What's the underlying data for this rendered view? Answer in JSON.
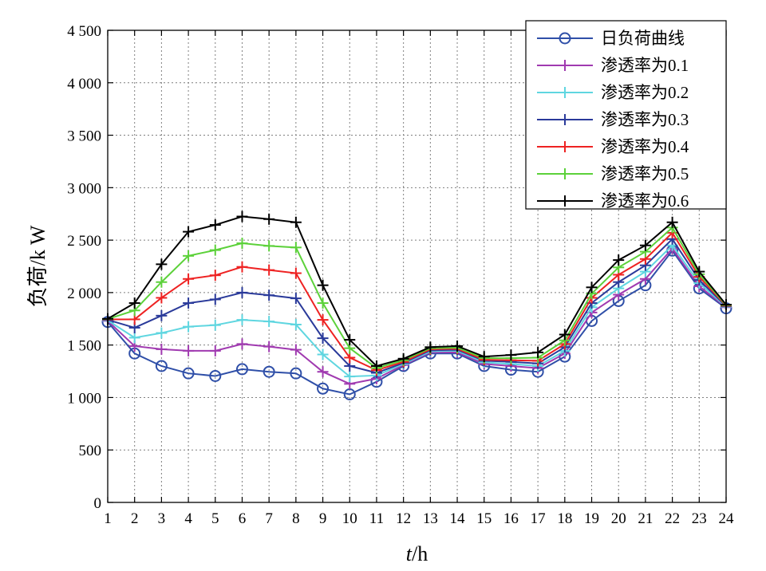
{
  "chart_data": {
    "type": "line",
    "title": "",
    "xlabel_italic": "t",
    "xlabel_rest": "/h",
    "ylabel": "负荷/k W",
    "xlim": [
      1,
      24
    ],
    "ylim": [
      0,
      4500
    ],
    "grid": true,
    "legend_position": "top-right",
    "x": [
      1,
      2,
      3,
      4,
      5,
      6,
      7,
      8,
      9,
      10,
      11,
      12,
      13,
      14,
      15,
      16,
      17,
      18,
      19,
      20,
      21,
      22,
      23,
      24
    ],
    "x_tick_labels": [
      "1",
      "2",
      "3",
      "4",
      "5",
      "6",
      "7",
      "8",
      "9",
      "10",
      "11",
      "12",
      "13",
      "14",
      "15",
      "16",
      "17",
      "18",
      "19",
      "20",
      "21",
      "22",
      "23",
      "24"
    ],
    "y_ticks": [
      0,
      500,
      1000,
      1500,
      2000,
      2500,
      3000,
      3500,
      4000,
      4500
    ],
    "y_tick_labels": [
      "0",
      "500",
      "1 000",
      "1 500",
      "2 000",
      "2 500",
      "3 000",
      "3 500",
      "4 000",
      "4 500"
    ],
    "series": [
      {
        "name": "日负荷曲线",
        "color": "#2f4fa8",
        "marker": "circle",
        "values": [
          1720,
          1420,
          1300,
          1230,
          1205,
          1270,
          1245,
          1230,
          1085,
          1030,
          1150,
          1300,
          1420,
          1420,
          1300,
          1265,
          1245,
          1390,
          1730,
          1920,
          2070,
          2400,
          2040,
          1850
        ]
      },
      {
        "name": "渗透率为0.1",
        "color": "#a03ab0",
        "marker": "plus",
        "values": [
          1730,
          1490,
          1460,
          1445,
          1445,
          1510,
          1485,
          1455,
          1245,
          1130,
          1180,
          1310,
          1430,
          1430,
          1320,
          1300,
          1280,
          1420,
          1810,
          1980,
          2130,
          2420,
          2060,
          1860
        ]
      },
      {
        "name": "渗透率为0.2",
        "color": "#5fd6e0",
        "marker": "plus",
        "values": [
          1735,
          1570,
          1615,
          1675,
          1690,
          1740,
          1725,
          1695,
          1410,
          1200,
          1210,
          1320,
          1440,
          1445,
          1335,
          1320,
          1300,
          1445,
          1860,
          2040,
          2200,
          2450,
          2090,
          1865
        ]
      },
      {
        "name": "渗透率为0.3",
        "color": "#2a3a9a",
        "marker": "plus",
        "values": [
          1740,
          1665,
          1780,
          1900,
          1935,
          2000,
          1975,
          1945,
          1565,
          1300,
          1235,
          1330,
          1450,
          1455,
          1350,
          1340,
          1325,
          1480,
          1900,
          2100,
          2260,
          2510,
          2120,
          1870
        ]
      },
      {
        "name": "渗透率为0.4",
        "color": "#ee2222",
        "marker": "plus",
        "values": [
          1745,
          1745,
          1950,
          2130,
          2165,
          2245,
          2215,
          2185,
          1740,
          1380,
          1260,
          1340,
          1460,
          1465,
          1360,
          1355,
          1350,
          1510,
          1950,
          2170,
          2320,
          2570,
          2150,
          1875
        ]
      },
      {
        "name": "渗透率为0.5",
        "color": "#5cd13a",
        "marker": "plus",
        "values": [
          1748,
          1830,
          2100,
          2350,
          2405,
          2470,
          2445,
          2430,
          1900,
          1470,
          1280,
          1355,
          1470,
          1475,
          1375,
          1375,
          1380,
          1545,
          1990,
          2240,
          2390,
          2620,
          2175,
          1880
        ]
      },
      {
        "name": "渗透率为0.6",
        "color": "#000000",
        "marker": "plus",
        "values": [
          1750,
          1900,
          2270,
          2580,
          2645,
          2725,
          2700,
          2670,
          2070,
          1550,
          1300,
          1370,
          1480,
          1490,
          1390,
          1405,
          1430,
          1600,
          2050,
          2310,
          2450,
          2670,
          2200,
          1885
        ]
      }
    ]
  }
}
